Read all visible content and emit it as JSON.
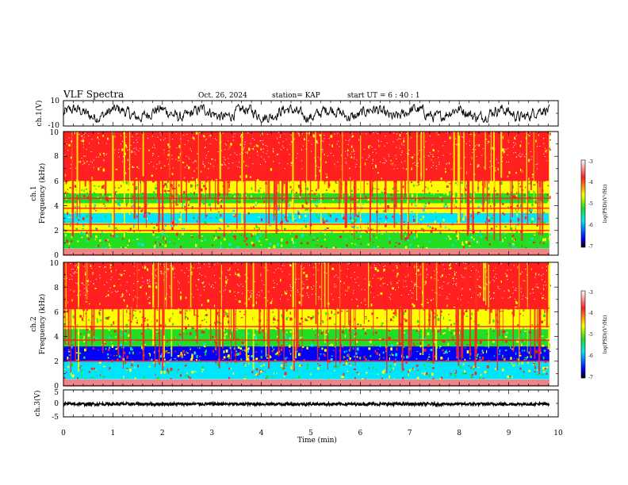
{
  "header": {
    "title": "VLF Spectra",
    "date": "Oct. 26, 2024",
    "station": "station= KAP",
    "start": "start  UT  =   6  : 40 : 1"
  },
  "colors": {
    "high": "#ff2020",
    "mid_high": "#ffff00",
    "mid": "#22dd22",
    "low_mid": "#00e5ff",
    "low": "#0000ff",
    "trace": "#000000"
  },
  "chart_data": [
    {
      "id": "ch1-waveform",
      "type": "line",
      "ylabel": "ch.1(V)",
      "ylim": [
        -10,
        10
      ],
      "yticks": [
        "10",
        "-10"
      ],
      "xlim": [
        0,
        10
      ],
      "series": [
        {
          "x_range": [
            0,
            9.82
          ],
          "approx_range": [
            -7,
            7
          ]
        }
      ]
    },
    {
      "id": "ch1-spectrogram",
      "type": "heatmap",
      "ylabel": "ch.1\nFrequency (kHz)",
      "ylim": [
        0,
        10
      ],
      "yticks": [
        "0",
        "2",
        "4",
        "6",
        "8",
        "10"
      ],
      "xlim": [
        0,
        10
      ],
      "data_end_min": 9.82,
      "colorbar": {
        "label": "log(PSD)(V²/Hz)",
        "range": [
          -7,
          -3
        ],
        "ticks": [
          "-3",
          "-4",
          "-5",
          "-6",
          "-7"
        ]
      },
      "bands_khz": [
        {
          "from": 0.0,
          "to": 0.5,
          "level": "mixed"
        },
        {
          "from": 0.5,
          "to": 1.8,
          "level": "mid"
        },
        {
          "from": 1.8,
          "to": 2.6,
          "level": "mid_high"
        },
        {
          "from": 2.6,
          "to": 3.4,
          "level": "low_mid"
        },
        {
          "from": 3.4,
          "to": 4.2,
          "level": "mid_high"
        },
        {
          "from": 4.2,
          "to": 5.0,
          "level": "mid"
        },
        {
          "from": 5.0,
          "to": 6.0,
          "level": "mid_high"
        },
        {
          "from": 6.0,
          "to": 10.0,
          "level": "high"
        }
      ],
      "lines_khz": [
        2.0,
        2.5,
        3.8,
        4.6
      ]
    },
    {
      "id": "ch2-spectrogram",
      "type": "heatmap",
      "ylabel": "ch.2\nFrequency (kHz)",
      "ylim": [
        0,
        10
      ],
      "yticks": [
        "0",
        "2",
        "4",
        "6",
        "8",
        "10"
      ],
      "xlim": [
        0,
        10
      ],
      "data_end_min": 9.82,
      "colorbar": {
        "label": "log(PSD)(V²/Hz)",
        "range": [
          -7,
          -3
        ],
        "ticks": [
          "-3",
          "-4",
          "-5",
          "-6",
          "-7"
        ]
      },
      "bands_khz": [
        {
          "from": 0.0,
          "to": 0.5,
          "level": "mixed"
        },
        {
          "from": 0.5,
          "to": 2.0,
          "level": "low_mid"
        },
        {
          "from": 2.0,
          "to": 3.2,
          "level": "low"
        },
        {
          "from": 3.2,
          "to": 4.6,
          "level": "mid"
        },
        {
          "from": 4.6,
          "to": 6.2,
          "level": "mid_high"
        },
        {
          "from": 6.2,
          "to": 10.0,
          "level": "high"
        }
      ],
      "lines_khz": [
        2.0,
        3.7,
        4.8,
        6.3
      ]
    },
    {
      "id": "ch3-waveform",
      "type": "line",
      "ylabel": "ch.3(V)",
      "ylim": [
        -5,
        5
      ],
      "yticks": [
        "5",
        "0",
        "-5"
      ],
      "xlim": [
        0,
        10
      ],
      "xlabel": "Time (min)",
      "xticks": [
        "0",
        "1",
        "2",
        "3",
        "4",
        "5",
        "6",
        "7",
        "8",
        "9",
        "10"
      ],
      "series": [
        {
          "x_range": [
            0,
            9.82
          ],
          "approx_range": [
            -0.8,
            0.3
          ]
        }
      ]
    }
  ]
}
